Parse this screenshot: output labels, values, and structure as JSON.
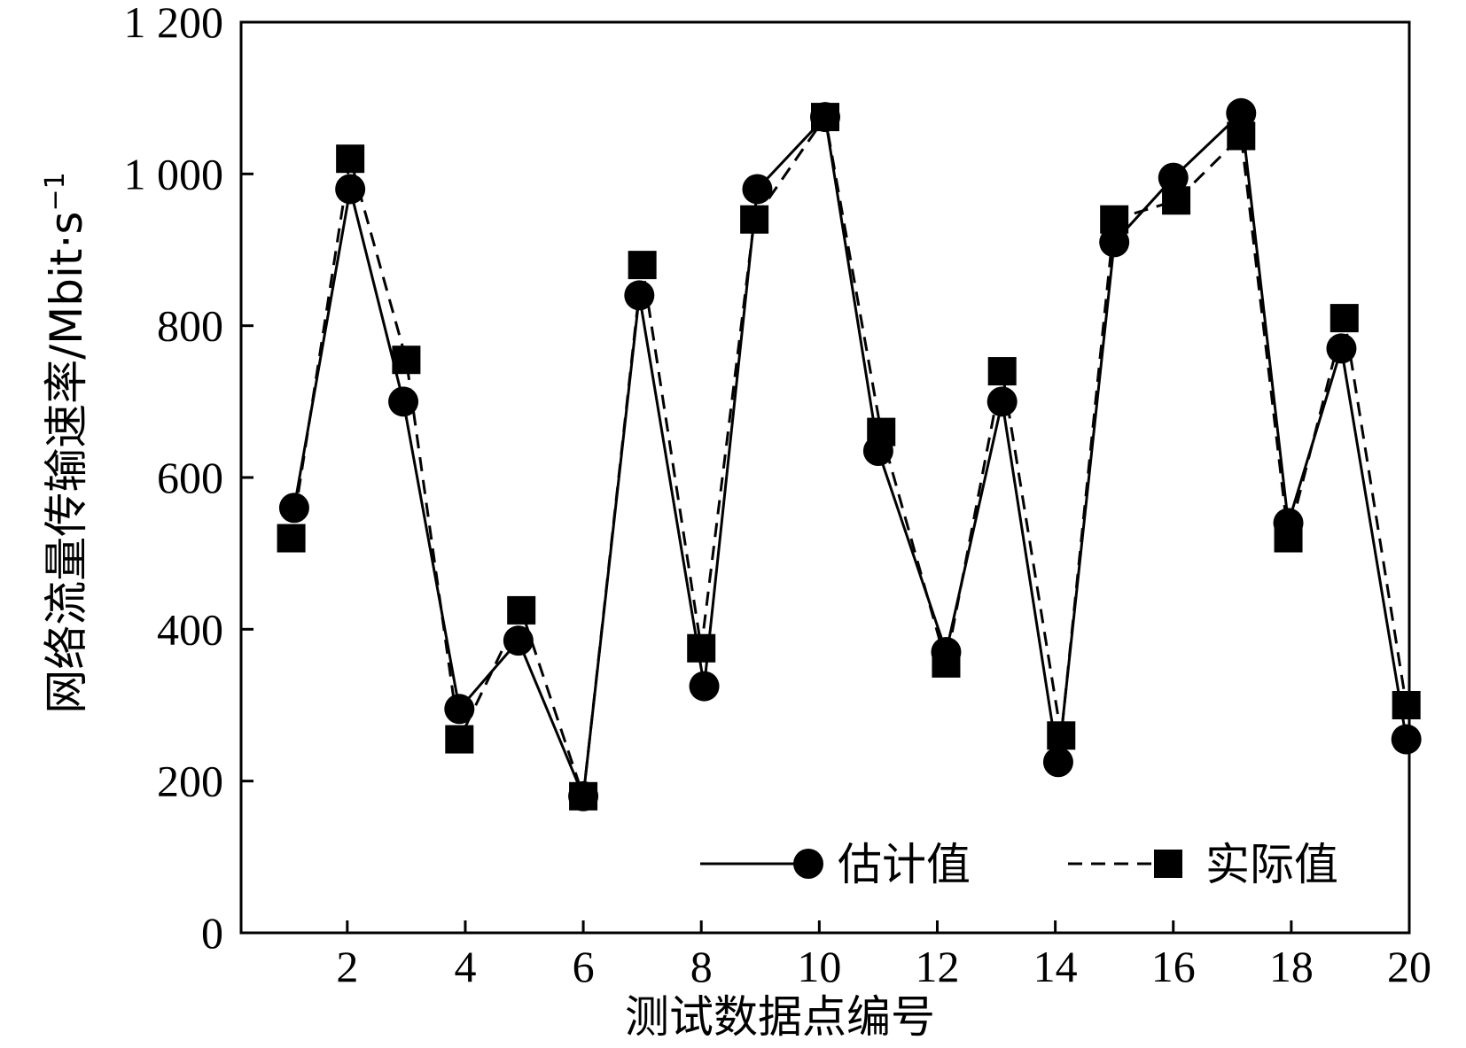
{
  "chart_data": {
    "type": "line",
    "xlabel": "测试数据点编号",
    "ylabel_main": "网络流量传输速率/Mbit·s",
    "ylabel_sup": "−1",
    "xlim": [
      0.2,
      20
    ],
    "ylim": [
      0,
      1200
    ],
    "x_ticks": [
      2,
      4,
      6,
      8,
      10,
      12,
      14,
      16,
      18,
      20
    ],
    "y_ticks": [
      {
        "value": 0,
        "label": "0"
      },
      {
        "value": 200,
        "label": "200"
      },
      {
        "value": 400,
        "label": "400"
      },
      {
        "value": 600,
        "label": "600"
      },
      {
        "value": 800,
        "label": "800"
      },
      {
        "value": 1000,
        "label": "1 000"
      },
      {
        "value": 1200,
        "label": "1 200"
      }
    ],
    "grid": false,
    "legend_position": "bottom-right",
    "series": [
      {
        "name": "估计值",
        "line_style": "solid",
        "marker": "circle",
        "color": "#000000",
        "x": [
          1.1,
          2.05,
          2.95,
          3.9,
          4.9,
          6.0,
          6.95,
          8.05,
          8.95,
          10.1,
          11.0,
          12.15,
          13.1,
          14.05,
          15.0,
          16.0,
          17.15,
          17.95,
          18.85,
          19.95
        ],
        "values": [
          560,
          980,
          700,
          295,
          385,
          180,
          840,
          325,
          980,
          1075,
          635,
          370,
          700,
          225,
          910,
          995,
          1080,
          540,
          770,
          255
        ]
      },
      {
        "name": "实际值",
        "line_style": "dashed",
        "marker": "square",
        "color": "#000000",
        "x": [
          1.05,
          2.05,
          3.0,
          3.9,
          4.95,
          6.0,
          7.0,
          8.0,
          8.9,
          10.1,
          11.05,
          12.15,
          13.1,
          14.1,
          15.0,
          16.05,
          17.15,
          17.95,
          18.9,
          19.95
        ],
        "values": [
          520,
          1020,
          755,
          255,
          425,
          180,
          880,
          375,
          940,
          1075,
          660,
          355,
          740,
          260,
          940,
          965,
          1050,
          520,
          810,
          300
        ]
      }
    ]
  }
}
